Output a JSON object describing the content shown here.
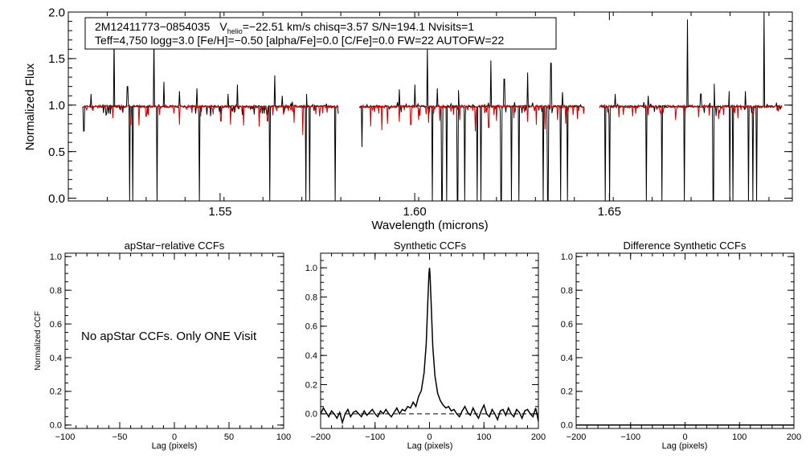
{
  "chart_data": [
    {
      "type": "line",
      "name": "spectrum",
      "xlabel": "Wavelength (microns)",
      "ylabel": "Normalized Flux",
      "xlim": [
        1.511,
        1.697
      ],
      "ylim": [
        -0.03,
        2.0
      ],
      "x_ticks": [
        {
          "value": 1.55,
          "label": "1.55"
        },
        {
          "value": 1.6,
          "label": "1.60"
        },
        {
          "value": 1.65,
          "label": "1.65"
        }
      ],
      "y_ticks": [
        {
          "value": 0.0,
          "label": "0.0"
        },
        {
          "value": 0.5,
          "label": "0.5"
        },
        {
          "value": 1.0,
          "label": "1.0"
        },
        {
          "value": 1.5,
          "label": "1.5"
        },
        {
          "value": 2.0,
          "label": "2.0"
        }
      ],
      "info_line1_parts": {
        "star": "2M12411773−0854035",
        "v": "V",
        "v_sub": "helio",
        "rest": "=−22.51 km/s  chisq=3.57  S/N=194.1  Nvisits=1"
      },
      "info_line2": "Teff=4,750 logg=3.0 [Fe/H]=−0.50 [alpha/Fe]=0.0 [C/Fe]=0.0 FW=22 AUTOFW=22",
      "chips": [
        [
          1.5146,
          1.5804
        ],
        [
          1.5858,
          1.6436
        ],
        [
          1.6475,
          1.6944
        ]
      ],
      "series": [
        {
          "name": "observed",
          "color": "#000000",
          "continuum": 0.985,
          "noise": 0.02,
          "emission_lines": [
            {
              "x": 1.5168,
              "y": 1.12
            },
            {
              "x": 1.5228,
              "y": 1.73
            },
            {
              "x": 1.5262,
              "y": 1.2
            },
            {
              "x": 1.533,
              "y": 1.72
            },
            {
              "x": 1.5355,
              "y": 1.25
            },
            {
              "x": 1.5395,
              "y": 1.15
            },
            {
              "x": 1.544,
              "y": 1.18
            },
            {
              "x": 1.552,
              "y": 1.12
            },
            {
              "x": 1.5545,
              "y": 1.22
            },
            {
              "x": 1.564,
              "y": 1.32
            },
            {
              "x": 1.566,
              "y": 1.1
            },
            {
              "x": 1.5722,
              "y": 1.12
            },
            {
              "x": 1.596,
              "y": 1.17
            },
            {
              "x": 1.6,
              "y": 1.22
            },
            {
              "x": 1.6033,
              "y": 1.62
            },
            {
              "x": 1.6058,
              "y": 1.18
            },
            {
              "x": 1.6113,
              "y": 1.16
            },
            {
              "x": 1.6195,
              "y": 1.48
            },
            {
              "x": 1.623,
              "y": 1.28
            },
            {
              "x": 1.629,
              "y": 1.35
            },
            {
              "x": 1.635,
              "y": 1.45
            },
            {
              "x": 1.638,
              "y": 1.14
            },
            {
              "x": 1.6515,
              "y": 1.12
            },
            {
              "x": 1.66,
              "y": 1.1
            },
            {
              "x": 1.67,
              "y": 1.92
            },
            {
              "x": 1.6735,
              "y": 1.12
            },
            {
              "x": 1.677,
              "y": 1.23
            },
            {
              "x": 1.6808,
              "y": 1.15
            },
            {
              "x": 1.685,
              "y": 1.15
            },
            {
              "x": 1.6898,
              "y": 2.0
            }
          ],
          "bad_pixels": [
            {
              "x": 1.515,
              "y": 0.72
            },
            {
              "x": 1.5267,
              "y": -0.03
            },
            {
              "x": 1.5275,
              "y": -0.03
            },
            {
              "x": 1.5338,
              "y": -0.03
            },
            {
              "x": 1.5447,
              "y": -0.03
            },
            {
              "x": 1.5627,
              "y": -0.03
            },
            {
              "x": 1.572,
              "y": -0.03
            },
            {
              "x": 1.573,
              "y": -0.03
            },
            {
              "x": 1.5795,
              "y": -0.03
            },
            {
              "x": 1.5865,
              "y": 0.55
            },
            {
              "x": 1.6045,
              "y": -0.03
            },
            {
              "x": 1.607,
              "y": -0.03
            },
            {
              "x": 1.6082,
              "y": -0.03
            },
            {
              "x": 1.611,
              "y": -0.03
            },
            {
              "x": 1.6128,
              "y": -0.03
            },
            {
              "x": 1.616,
              "y": -0.03
            },
            {
              "x": 1.617,
              "y": -0.03
            },
            {
              "x": 1.6222,
              "y": -0.03
            },
            {
              "x": 1.6248,
              "y": -0.03
            },
            {
              "x": 1.6268,
              "y": -0.03
            },
            {
              "x": 1.633,
              "y": -0.03
            },
            {
              "x": 1.6342,
              "y": -0.03
            },
            {
              "x": 1.6375,
              "y": -0.03
            },
            {
              "x": 1.6392,
              "y": -0.03
            },
            {
              "x": 1.649,
              "y": -0.03
            },
            {
              "x": 1.65,
              "y": -0.03
            },
            {
              "x": 1.6595,
              "y": -0.03
            },
            {
              "x": 1.6635,
              "y": -0.03
            },
            {
              "x": 1.6693,
              "y": -0.03
            },
            {
              "x": 1.6767,
              "y": -0.03
            },
            {
              "x": 1.681,
              "y": -0.03
            },
            {
              "x": 1.6818,
              "y": -0.03
            },
            {
              "x": 1.6858,
              "y": -0.03
            },
            {
              "x": 1.6868,
              "y": -0.03
            },
            {
              "x": 1.6878,
              "y": -0.03
            }
          ]
        },
        {
          "name": "synthetic",
          "color": "#cc0000",
          "continuum": 0.985,
          "absorption_lines": [
            {
              "x": 1.5225,
              "y": 0.86
            },
            {
              "x": 1.527,
              "y": 0.79
            },
            {
              "x": 1.5292,
              "y": 0.78
            },
            {
              "x": 1.531,
              "y": 0.88
            },
            {
              "x": 1.5395,
              "y": 0.79
            },
            {
              "x": 1.545,
              "y": 0.88
            },
            {
              "x": 1.5502,
              "y": 0.83
            },
            {
              "x": 1.5527,
              "y": 0.79
            },
            {
              "x": 1.556,
              "y": 0.78
            },
            {
              "x": 1.56,
              "y": 0.77
            },
            {
              "x": 1.5622,
              "y": 0.83
            },
            {
              "x": 1.569,
              "y": 0.81
            },
            {
              "x": 1.5712,
              "y": 0.68
            },
            {
              "x": 1.5755,
              "y": 0.88
            },
            {
              "x": 1.5887,
              "y": 0.77
            },
            {
              "x": 1.5915,
              "y": 0.73
            },
            {
              "x": 1.593,
              "y": 0.8
            },
            {
              "x": 1.596,
              "y": 0.82
            },
            {
              "x": 1.599,
              "y": 0.79
            },
            {
              "x": 1.601,
              "y": 0.84
            },
            {
              "x": 1.6035,
              "y": 0.81
            },
            {
              "x": 1.6065,
              "y": 0.83
            },
            {
              "x": 1.6115,
              "y": 0.84
            },
            {
              "x": 1.6155,
              "y": 0.72
            },
            {
              "x": 1.619,
              "y": 0.76
            },
            {
              "x": 1.621,
              "y": 0.83
            },
            {
              "x": 1.6255,
              "y": 0.86
            },
            {
              "x": 1.629,
              "y": 0.82
            },
            {
              "x": 1.6312,
              "y": 0.79
            },
            {
              "x": 1.6335,
              "y": 0.74
            },
            {
              "x": 1.6367,
              "y": 0.84
            },
            {
              "x": 1.6388,
              "y": 0.8
            },
            {
              "x": 1.6418,
              "y": 0.85
            },
            {
              "x": 1.6525,
              "y": 0.87
            },
            {
              "x": 1.656,
              "y": 0.88
            },
            {
              "x": 1.66,
              "y": 0.89
            },
            {
              "x": 1.667,
              "y": 0.84
            },
            {
              "x": 1.673,
              "y": 0.87
            },
            {
              "x": 1.678,
              "y": 0.85
            },
            {
              "x": 1.683,
              "y": 0.86
            },
            {
              "x": 1.687,
              "y": 0.89
            }
          ]
        }
      ]
    },
    {
      "type": "line",
      "title": "apStar−relative CCFs",
      "xlabel": "Lag (pixels)",
      "ylabel": "Normalized CCF",
      "xlim": [
        -100,
        100
      ],
      "ylim": [
        -0.02,
        1.02
      ],
      "x_ticks": [
        {
          "value": -100,
          "label": "−100"
        },
        {
          "value": -50,
          "label": "−50"
        },
        {
          "value": 0,
          "label": "0"
        },
        {
          "value": 50,
          "label": "50"
        },
        {
          "value": 100,
          "label": "100"
        }
      ],
      "y_ticks": [
        {
          "value": 0.0,
          "label": "0.0"
        },
        {
          "value": 0.2,
          "label": "0.2"
        },
        {
          "value": 0.4,
          "label": "0.4"
        },
        {
          "value": 0.6,
          "label": "0.6"
        },
        {
          "value": 0.8,
          "label": "0.8"
        },
        {
          "value": 1.0,
          "label": "1.0"
        }
      ],
      "message": "No apStar CCFs.  Only ONE Visit"
    },
    {
      "type": "line",
      "title": "Synthetic CCFs",
      "xlabel": "Lag (pixels)",
      "xlim": [
        -200,
        200
      ],
      "ylim": [
        -0.1,
        1.1
      ],
      "x_ticks": [
        {
          "value": -200,
          "label": "−200"
        },
        {
          "value": -100,
          "label": "−100"
        },
        {
          "value": 0,
          "label": "0"
        },
        {
          "value": 100,
          "label": "100"
        },
        {
          "value": 200,
          "label": "200"
        }
      ],
      "y_ticks": [
        {
          "value": 0.0,
          "label": "0.0"
        },
        {
          "value": 0.2,
          "label": "0.2"
        },
        {
          "value": 0.4,
          "label": "0.4"
        },
        {
          "value": 0.6,
          "label": "0.6"
        },
        {
          "value": 0.8,
          "label": "0.8"
        },
        {
          "value": 1.0,
          "label": "1.0"
        }
      ],
      "zero_line": 0.0,
      "series": [
        {
          "color": "#000000",
          "x": [
            -200,
            -195,
            -190,
            -185,
            -180,
            -175,
            -170,
            -165,
            -160,
            -155,
            -150,
            -145,
            -140,
            -135,
            -130,
            -125,
            -120,
            -115,
            -110,
            -105,
            -100,
            -95,
            -90,
            -85,
            -80,
            -75,
            -70,
            -65,
            -60,
            -55,
            -50,
            -45,
            -40,
            -35,
            -30,
            -25,
            -20,
            -15,
            -10,
            -6,
            -3,
            -1,
            0,
            1,
            3,
            6,
            10,
            15,
            20,
            25,
            30,
            35,
            40,
            45,
            50,
            55,
            60,
            65,
            70,
            75,
            80,
            85,
            90,
            95,
            100,
            105,
            110,
            115,
            120,
            125,
            130,
            135,
            140,
            145,
            150,
            155,
            160,
            165,
            170,
            175,
            180,
            185,
            190,
            195,
            200
          ],
          "y": [
            0.0,
            0.04,
            0.01,
            -0.02,
            0.02,
            0.0,
            -0.03,
            0.01,
            -0.06,
            0.0,
            0.03,
            -0.02,
            0.01,
            0.02,
            0.0,
            -0.02,
            0.02,
            -0.01,
            0.01,
            0.03,
            0.0,
            -0.02,
            0.02,
            0.0,
            0.03,
            0.0,
            -0.02,
            0.01,
            0.04,
            0.0,
            0.03,
            0.02,
            0.05,
            0.04,
            0.08,
            0.05,
            0.12,
            0.16,
            0.28,
            0.48,
            0.78,
            0.96,
            1.0,
            0.95,
            0.76,
            0.46,
            0.26,
            0.14,
            0.09,
            0.06,
            0.04,
            0.05,
            0.02,
            0.03,
            0.0,
            -0.02,
            0.02,
            0.05,
            0.01,
            -0.01,
            0.04,
            0.0,
            -0.03,
            0.02,
            0.06,
            0.0,
            -0.02,
            0.03,
            0.0,
            -0.04,
            0.02,
            0.03,
            -0.01,
            0.04,
            0.0,
            -0.02,
            0.03,
            0.01,
            -0.03,
            0.02,
            0.03,
            0.0,
            -0.02,
            0.04,
            -0.05
          ]
        }
      ]
    },
    {
      "type": "line",
      "title": "Difference Synthetic CCFs",
      "xlabel": "Lag (pixels)",
      "xlim": [
        -200,
        200
      ],
      "ylim": [
        -0.02,
        1.02
      ],
      "x_ticks": [
        {
          "value": -200,
          "label": "−200"
        },
        {
          "value": -100,
          "label": "−100"
        },
        {
          "value": 0,
          "label": "0"
        },
        {
          "value": 100,
          "label": "100"
        },
        {
          "value": 200,
          "label": "200"
        }
      ],
      "y_ticks": [
        {
          "value": 0.0,
          "label": "0.0"
        },
        {
          "value": 0.2,
          "label": "0.2"
        },
        {
          "value": 0.4,
          "label": "0.4"
        },
        {
          "value": 0.6,
          "label": "0.6"
        },
        {
          "value": 0.8,
          "label": "0.8"
        },
        {
          "value": 1.0,
          "label": "1.0"
        }
      ],
      "series": [
        {
          "color": "#000000",
          "x": [
            -200,
            200
          ],
          "y": [
            0.0,
            0.0
          ]
        }
      ]
    }
  ]
}
